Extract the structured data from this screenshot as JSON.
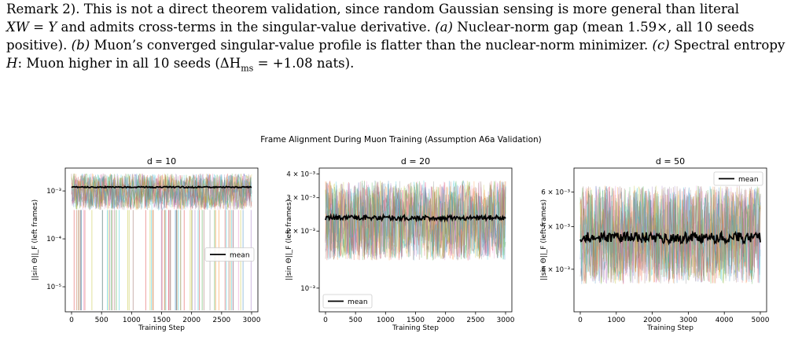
{
  "caption": {
    "line1": "Remark 2). This is not a direct theorem validation, since random Gaussian sensing is more general than literal",
    "line2_math": "XW = Y",
    "line2_text": " and admits cross-terms in the singular-value derivative. ",
    "part_a_label": "(a)",
    "part_a_text": " Nuclear-norm gap (mean 1.59×, all 10 seeds",
    "line3_text": "positive). ",
    "part_b_label": "(b)",
    "part_b_text": " Muon’s converged singular-value profile is flatter than the nuclear-norm minimizer. ",
    "part_c_label": "(c)",
    "part_c_text": " Spectral entropy",
    "line4_math": "H",
    "line4_text": ": Muon higher in all 10 seeds (ΔH",
    "line4_sub": "ms",
    "line4_tail": " = +1.08 nats)."
  },
  "figure": {
    "suptitle": "Frame Alignment During Muon Training (Assumption A6a Validation)"
  },
  "chart_data": [
    {
      "type": "line",
      "title": "d = 10",
      "xlabel": "Training Step",
      "ylabel": "||sin Θ||_F (left frames)",
      "yscale": "log",
      "xlim": [
        0,
        3000
      ],
      "ylim": [
        3e-06,
        0.003
      ],
      "xticks": [
        "0",
        "500",
        "1000",
        "1500",
        "2000",
        "2500",
        "3000"
      ],
      "yticks": [
        {
          "label": "10⁻³",
          "value": 0.001
        },
        {
          "label": "10⁻⁴",
          "value": 0.0001
        },
        {
          "label": "10⁻⁵",
          "value": 1e-05
        }
      ],
      "legend": {
        "position": "center-right",
        "entries": [
          "mean"
        ]
      },
      "mean_series": {
        "name": "mean",
        "approx_value": 0.0012
      },
      "background_band": {
        "low": 0.0004,
        "high": 0.0023
      },
      "seed": 11
    },
    {
      "type": "line",
      "title": "d = 20",
      "xlabel": "Training Step",
      "ylabel": "||sin Θ||_F (left frames)",
      "yscale": "log",
      "xlim": [
        0,
        3000
      ],
      "ylim": [
        0.00075,
        0.0043
      ],
      "xticks": [
        "0",
        "500",
        "1000",
        "1500",
        "2000",
        "2500",
        "3000"
      ],
      "yticks": [
        {
          "label": "4 × 10⁻³",
          "value": 0.004
        },
        {
          "label": "3 × 10⁻³",
          "value": 0.003
        },
        {
          "label": "2 × 10⁻³",
          "value": 0.002
        },
        {
          "label": "10⁻³",
          "value": 0.001
        }
      ],
      "legend": {
        "position": "lower-left",
        "entries": [
          "mean"
        ]
      },
      "mean_series": {
        "name": "mean",
        "approx_value": 0.00235
      },
      "background_band": {
        "low": 0.0014,
        "high": 0.0037
      },
      "seed": 23
    },
    {
      "type": "line",
      "title": "d = 50",
      "xlabel": "Training Step",
      "ylabel": "||sin Θ||_F (left frames)",
      "yscale": "log",
      "xlim": [
        0,
        5000
      ],
      "ylim": [
        0.0032,
        0.0068
      ],
      "xticks": [
        "0",
        "1000",
        "2000",
        "3000",
        "4000",
        "5000"
      ],
      "yticks": [
        {
          "label": "6 × 10⁻³",
          "value": 0.006
        },
        {
          "label": "5 × 10⁻³",
          "value": 0.005
        },
        {
          "label": "4 × 10⁻³",
          "value": 0.004
        }
      ],
      "legend": {
        "position": "upper-right",
        "entries": [
          "mean"
        ]
      },
      "mean_series": {
        "name": "mean",
        "approx_value": 0.00472
      },
      "background_band": {
        "low": 0.0037,
        "high": 0.0062
      },
      "seed": 47
    }
  ],
  "palette": [
    "#1f77b4",
    "#ff7f0e",
    "#2ca02c",
    "#d62728",
    "#9467bd",
    "#8c564b",
    "#e377c2",
    "#7f7f7f",
    "#bcbd22",
    "#17becf"
  ]
}
